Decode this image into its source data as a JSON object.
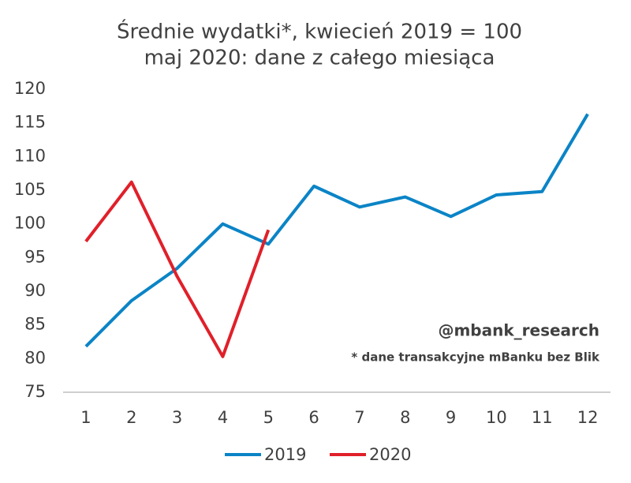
{
  "chart_data": {
    "type": "line",
    "title": "Średnie wydatki*, kwiecień 2019 = 100",
    "subtitle": "maj 2020: dane z całego miesiąca",
    "categories": [
      1,
      2,
      3,
      4,
      5,
      6,
      7,
      8,
      9,
      10,
      11,
      12
    ],
    "series": [
      {
        "name": "2019",
        "color": "#0b84c6",
        "values": [
          81.8,
          88.6,
          93.4,
          100,
          97,
          105.6,
          102.5,
          104,
          101.1,
          104.3,
          104.8,
          116.3
        ]
      },
      {
        "name": "2020",
        "color": "#e0202a",
        "values": [
          97.4,
          106.2,
          92.2,
          80.3,
          99.1,
          null,
          null,
          null,
          null,
          null,
          null,
          null
        ]
      }
    ],
    "ylim": [
      75,
      120
    ],
    "yticks": [
      75,
      80,
      85,
      90,
      95,
      100,
      105,
      110,
      115,
      120
    ],
    "annotations": [
      "@mbank_research",
      "* dane transakcyjne mBanku bez Blik"
    ],
    "grid": false,
    "legend": "bottom"
  }
}
